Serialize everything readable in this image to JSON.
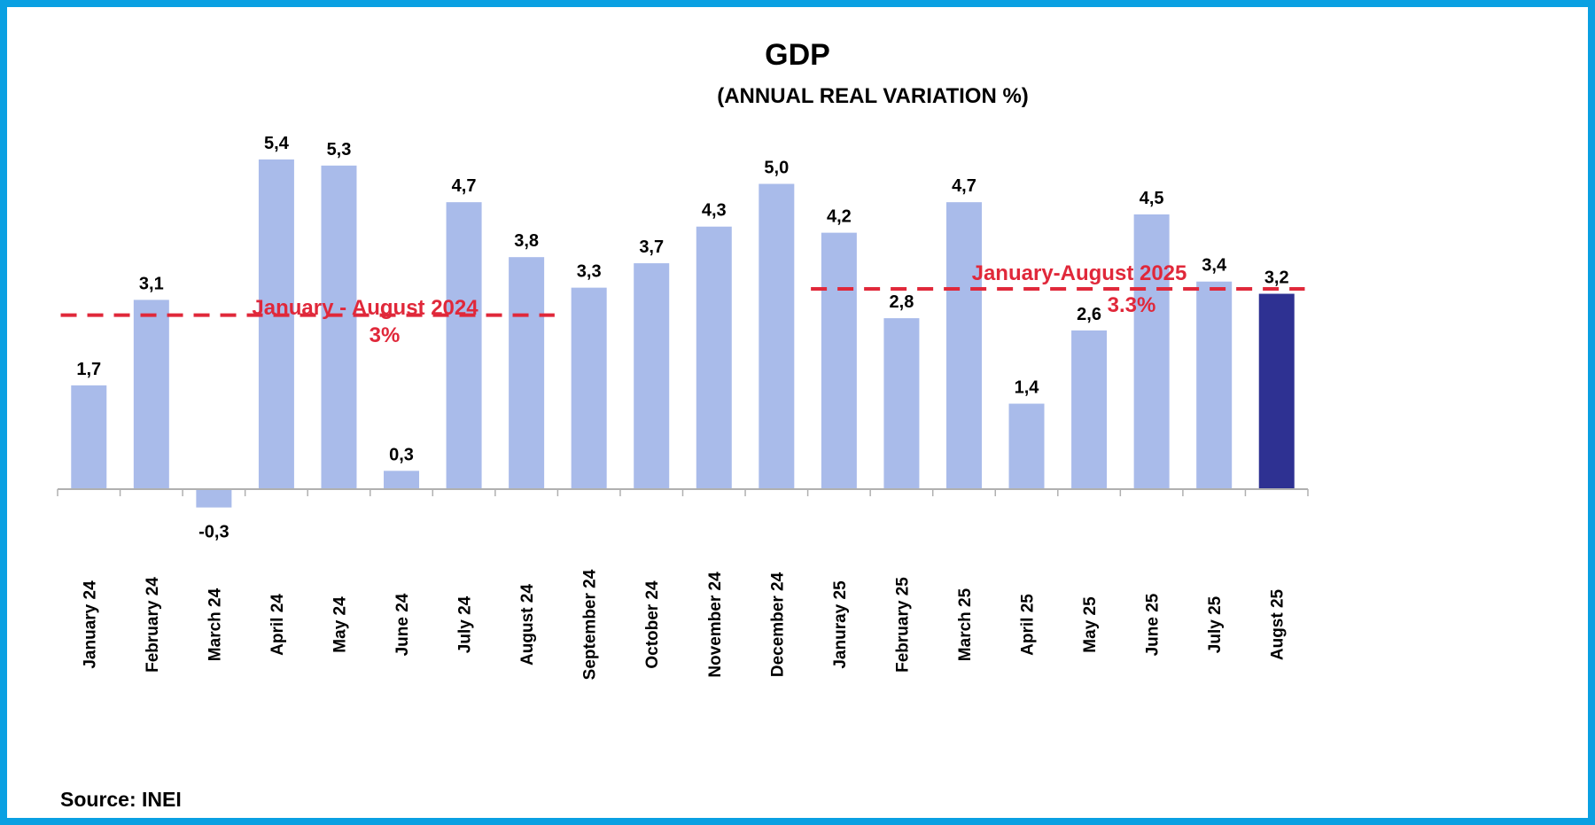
{
  "chart_data": {
    "type": "bar",
    "title": "GDP",
    "subtitle": "(ANNUAL REAL VARIATION %)",
    "xlabel": "",
    "ylabel": "",
    "ylim": [
      -0.6,
      6.5
    ],
    "grid": false,
    "categories": [
      "January 24",
      "February 24",
      "March 24",
      "April 24",
      "May 24",
      "June 24",
      "July 24",
      "August 24",
      "September 24",
      "October 24",
      "November 24",
      "December 24",
      "Januray 25",
      "February 25",
      "March 25",
      "April 25",
      "May 25",
      "June 25",
      "July 25",
      "Augst 25"
    ],
    "values": [
      1.7,
      3.1,
      -0.3,
      5.4,
      5.3,
      0.3,
      4.7,
      3.8,
      3.3,
      3.7,
      4.3,
      5.0,
      4.2,
      2.8,
      4.7,
      1.4,
      2.6,
      4.5,
      3.4,
      3.2
    ],
    "value_labels": [
      "1,7",
      "3,1",
      "-0,3",
      "5,4",
      "5,3",
      "0,3",
      "4,7",
      "3,8",
      "3,3",
      "3,7",
      "4,3",
      "5,0",
      "4,2",
      "2,8",
      "4,7",
      "1,4",
      "2,6",
      "4,5",
      "3,4",
      "3,2"
    ],
    "highlight_index": 19,
    "highlight_label_indices": [
      15,
      19
    ],
    "colors": {
      "bar": "#a9bbea",
      "highlight_bar": "#2e3192",
      "highlight_label": "#2e3192",
      "label": "#000000",
      "reference_line": "#e0283a",
      "frame": "#0aa0e2",
      "axis": "#b0b0b0"
    },
    "reference_lines": [
      {
        "name": "avg-2024",
        "label_line1": "January - August 2024",
        "label_line2": "3%",
        "value": 2.85,
        "from_index": 0,
        "to_index": 7
      },
      {
        "name": "avg-2025",
        "label_line1": "January-August 2025",
        "label_line2": "3.3%",
        "value": 3.28,
        "from_index": 12,
        "to_index": 19
      }
    ],
    "source": "Source: INEI"
  }
}
